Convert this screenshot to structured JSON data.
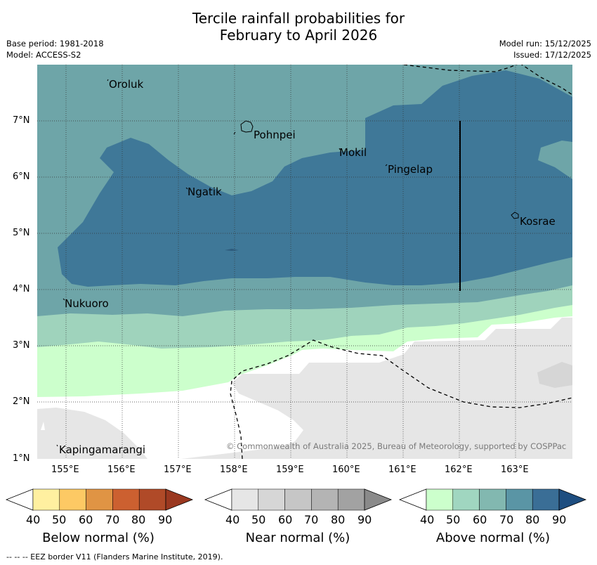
{
  "title": {
    "line1": "Tercile rainfall probabilities for",
    "line2": "February to April 2026"
  },
  "meta": {
    "base_period": "Base period: 1981-2018",
    "model": "Model: ACCESS-S2",
    "model_run": "Model run: 15/12/2025",
    "issued": "Issued: 17/12/2025"
  },
  "map": {
    "lat_labels": [
      "7°N",
      "6°N",
      "5°N",
      "4°N",
      "3°N",
      "2°N",
      "1°N"
    ],
    "lon_labels": [
      "155°E",
      "156°E",
      "157°E",
      "158°E",
      "159°E",
      "160°E",
      "161°E",
      "162°E",
      "163°E"
    ],
    "places": {
      "oroluk": "Oroluk",
      "pohnpei": "Pohnpei",
      "mokil": "Mokil",
      "pingelap": "Pingelap",
      "ngatik": "Ngatik",
      "kosrae": "Kosrae",
      "nukuoro": "Nukuoro",
      "kapingamarangi": "Kapingamarangi"
    },
    "copyright": "© Commonwealth of Australia 2025, Bureau of Meteorology, supported by COSPPac"
  },
  "legend": {
    "below": {
      "title": "Below normal (%)",
      "ticks": [
        "40",
        "50",
        "60",
        "70",
        "80",
        "90"
      ],
      "colors": [
        "#fff0a0",
        "#fdc964",
        "#e09444",
        "#cc6030",
        "#b04a28",
        "#9a3820"
      ]
    },
    "near": {
      "title": "Near normal (%)",
      "ticks": [
        "40",
        "50",
        "60",
        "70",
        "80",
        "90"
      ],
      "colors": [
        "#e6e6e6",
        "#d6d6d6",
        "#c6c6c6",
        "#b4b4b4",
        "#a2a2a2",
        "#8a8a8a"
      ]
    },
    "above": {
      "title": "Above normal (%)",
      "ticks": [
        "40",
        "50",
        "60",
        "70",
        "80",
        "90"
      ],
      "colors": [
        "#ccffcc",
        "#a0d6c0",
        "#82b8b0",
        "#5a95a5",
        "#3a6e96",
        "#1e4e80"
      ]
    }
  },
  "footer": "--  --  -- EEZ border V11 (Flanders Marine Institute, 2019)."
}
